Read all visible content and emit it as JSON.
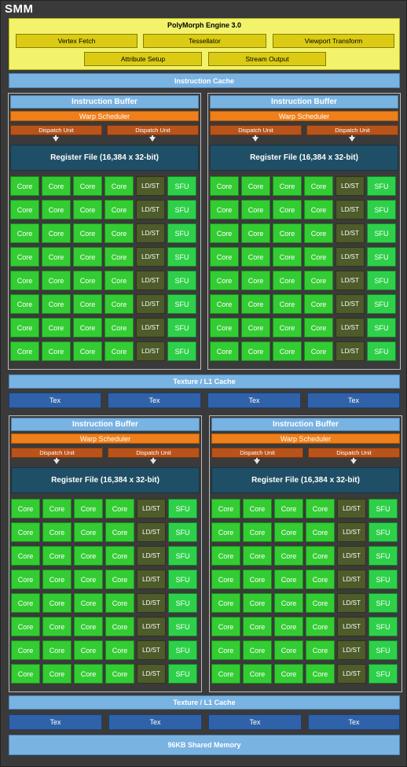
{
  "title": "SMM",
  "polymorph": {
    "title": "PolyMorph Engine 3.0",
    "units": [
      "Vertex Fetch",
      "Tessellator",
      "Viewport Transform",
      "Attribute Setup",
      "Stream Output"
    ]
  },
  "instruction_cache": "Instruction Cache",
  "quadrant": {
    "instruction_buffer": "Instruction Buffer",
    "warp_scheduler": "Warp Scheduler",
    "dispatch_unit": "Dispatch Unit",
    "register_file": "Register File (16,384 x 32-bit)",
    "rows": 8,
    "row_cells": [
      "Core",
      "Core",
      "Core",
      "Core",
      "LD/ST",
      "SFU"
    ]
  },
  "texture_l1_cache": "Texture / L1 Cache",
  "tex_label": "Tex",
  "shared_memory": "96KB Shared Memory"
}
